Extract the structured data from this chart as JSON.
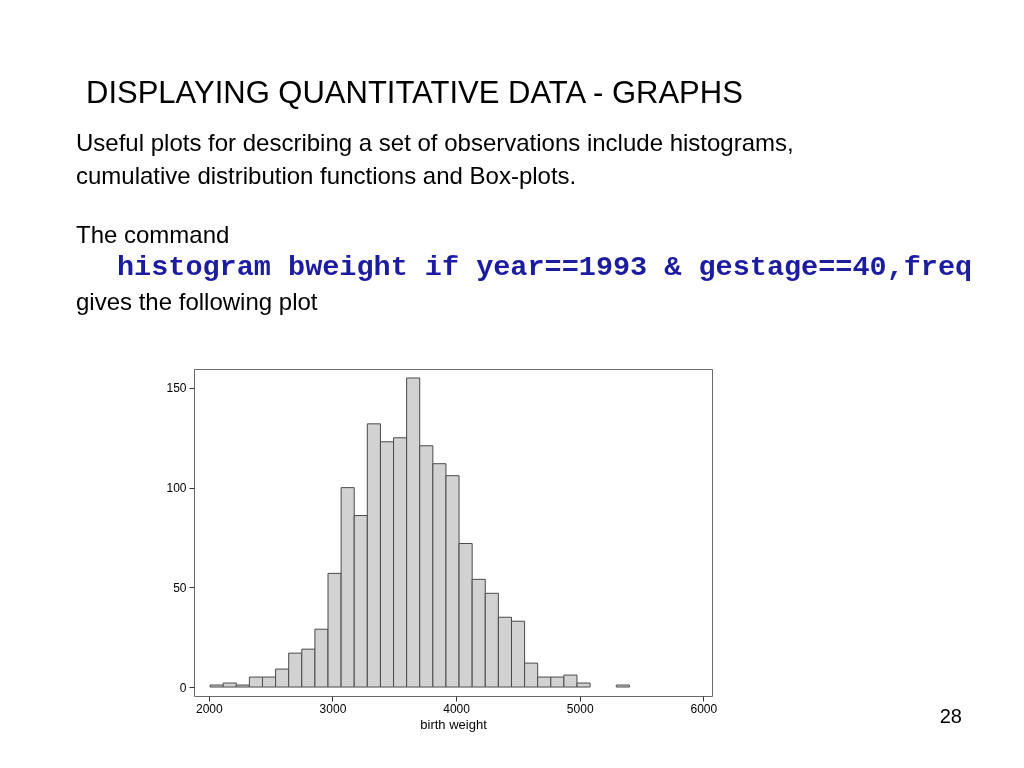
{
  "chart_data": {
    "type": "histogram",
    "title": "DISPLAYING QUANTITATIVE DATA - GRAPHS",
    "subtitle": "Useful plots for describing a set of observations include histograms, cumulative distribution functions and Box-plots.",
    "xlabel": "birth weight",
    "annotations": [
      "The command",
      "histogram bweight if year==1993 & gestage==40,freq",
      "gives the following plot",
      "28"
    ],
    "bins": [
      2010,
      2116,
      2222,
      2328,
      2434,
      2540,
      2646,
      2752,
      2858,
      2964,
      3070,
      3176,
      3282,
      3388,
      3494,
      3600,
      3706,
      3812,
      3918,
      4024,
      4130,
      4236,
      4342,
      4448,
      4554,
      4660,
      4766,
      4872,
      4978,
      5084,
      5190,
      5296,
      5402
    ],
    "values": [
      1,
      2,
      1,
      5,
      5,
      9,
      17,
      19,
      29,
      57,
      100,
      86,
      132,
      123,
      125,
      155,
      121,
      112,
      106,
      72,
      54,
      47,
      35,
      33,
      12,
      5,
      5,
      6,
      2,
      0,
      0,
      1
    ],
    "color": "#d2d2d2",
    "xlim": [
      1880,
      6070
    ],
    "ylim": [
      -4.5,
      159.5
    ],
    "xticks": [
      2000,
      3000,
      4000,
      5000,
      6000
    ],
    "yticks": [
      0,
      50,
      100,
      150
    ]
  }
}
